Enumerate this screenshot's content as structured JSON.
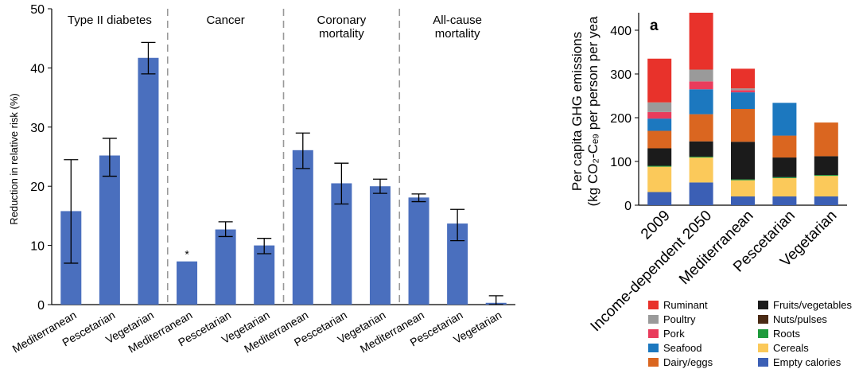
{
  "chart_data": [
    {
      "type": "bar",
      "ylabel": "Reduction in relative risk (%)",
      "ylim": [
        0,
        50
      ],
      "yticks": [
        0,
        10,
        20,
        30,
        40,
        50
      ],
      "yticks_label_partial_top": "50",
      "bar_color": "#4a6fbe",
      "grid": false,
      "groups": [
        {
          "title": "Type II diabetes",
          "bars": [
            {
              "label": "Mediterranean",
              "value": 15.8,
              "err_low": 7.0,
              "err_high": 24.5
            },
            {
              "label": "Pescetarian",
              "value": 25.2,
              "err_low": 21.7,
              "err_high": 28.1
            },
            {
              "label": "Vegetarian",
              "value": 41.7,
              "err_low": 39.0,
              "err_high": 44.3
            }
          ]
        },
        {
          "title": "Cancer",
          "bars": [
            {
              "label": "Mediterranean",
              "value": 7.3,
              "err_low": null,
              "err_high": null,
              "marker": "*"
            },
            {
              "label": "Pescetarian",
              "value": 12.7,
              "err_low": 11.5,
              "err_high": 14.0
            },
            {
              "label": "Vegetarian",
              "value": 10.0,
              "err_low": 8.6,
              "err_high": 11.2
            }
          ]
        },
        {
          "title": "Coronary mortality",
          "title_lines": [
            "Coronary",
            "mortality"
          ],
          "bars": [
            {
              "label": "Mediterranean",
              "value": 26.1,
              "err_low": 23.0,
              "err_high": 29.0
            },
            {
              "label": "Pescetarian",
              "value": 20.5,
              "err_low": 17.0,
              "err_high": 23.9
            },
            {
              "label": "Vegetarian",
              "value": 20.0,
              "err_low": 18.8,
              "err_high": 21.2
            }
          ]
        },
        {
          "title": "All-cause mortality",
          "title_lines": [
            "All-cause",
            "mortality"
          ],
          "bars": [
            {
              "label": "Mediterranean",
              "value": 18.1,
              "err_low": 17.4,
              "err_high": 18.7
            },
            {
              "label": "Pescetarian",
              "value": 13.7,
              "err_low": 10.8,
              "err_high": 16.1
            },
            {
              "label": "Vegetarian",
              "value": 0.3,
              "err_low": 0.0,
              "err_high": 1.5
            }
          ]
        }
      ]
    },
    {
      "type": "bar",
      "stacked": true,
      "panel_label": "a",
      "ylabel_line1": "Per capita GHG emissions",
      "ylabel_line2": "(kg CO₂-Cₑ₉ per person per yea",
      "ylim": [
        0,
        440
      ],
      "yticks": [
        0,
        100,
        200,
        300,
        400
      ],
      "categories": [
        "2009",
        "Income-dependent 2050",
        "Mediterranean",
        "Pescetarian",
        "Vegetarian"
      ],
      "series": [
        {
          "name": "Empty calories",
          "color": "#3b5fb5",
          "values": [
            30,
            52,
            20,
            20,
            20
          ]
        },
        {
          "name": "Cereals",
          "color": "#fbc95a",
          "values": [
            58,
            57,
            37,
            42,
            47
          ]
        },
        {
          "name": "Roots",
          "color": "#1e9a3c",
          "values": [
            2,
            2,
            2,
            2,
            2
          ]
        },
        {
          "name": "Nuts/pulses",
          "color": "#4a2a14",
          "values": [
            0,
            0,
            0,
            0,
            0
          ]
        },
        {
          "name": "Fruits/vegetables",
          "color": "#1b1b1b",
          "values": [
            40,
            35,
            86,
            45,
            43
          ]
        },
        {
          "name": "Dairy/eggs",
          "color": "#da6620",
          "values": [
            40,
            62,
            75,
            50,
            77
          ]
        },
        {
          "name": "Seafood",
          "color": "#1c78bf",
          "values": [
            28,
            57,
            38,
            75,
            0
          ]
        },
        {
          "name": "Pork",
          "color": "#e93c5c",
          "values": [
            15,
            18,
            5,
            0,
            0
          ]
        },
        {
          "name": "Poultry",
          "color": "#9a9a9a",
          "values": [
            22,
            27,
            4,
            0,
            0
          ]
        },
        {
          "name": "Ruminant",
          "color": "#e8322b",
          "values": [
            100,
            130,
            45,
            0,
            0
          ]
        }
      ],
      "legend_placement": "bottom",
      "legend_columns": [
        [
          "Ruminant",
          "Poultry",
          "Pork",
          "Seafood",
          "Dairy/eggs"
        ],
        [
          "Fruits/vegetables",
          "Nuts/pulses",
          "Roots",
          "Cereals",
          "Empty calories"
        ]
      ]
    }
  ]
}
